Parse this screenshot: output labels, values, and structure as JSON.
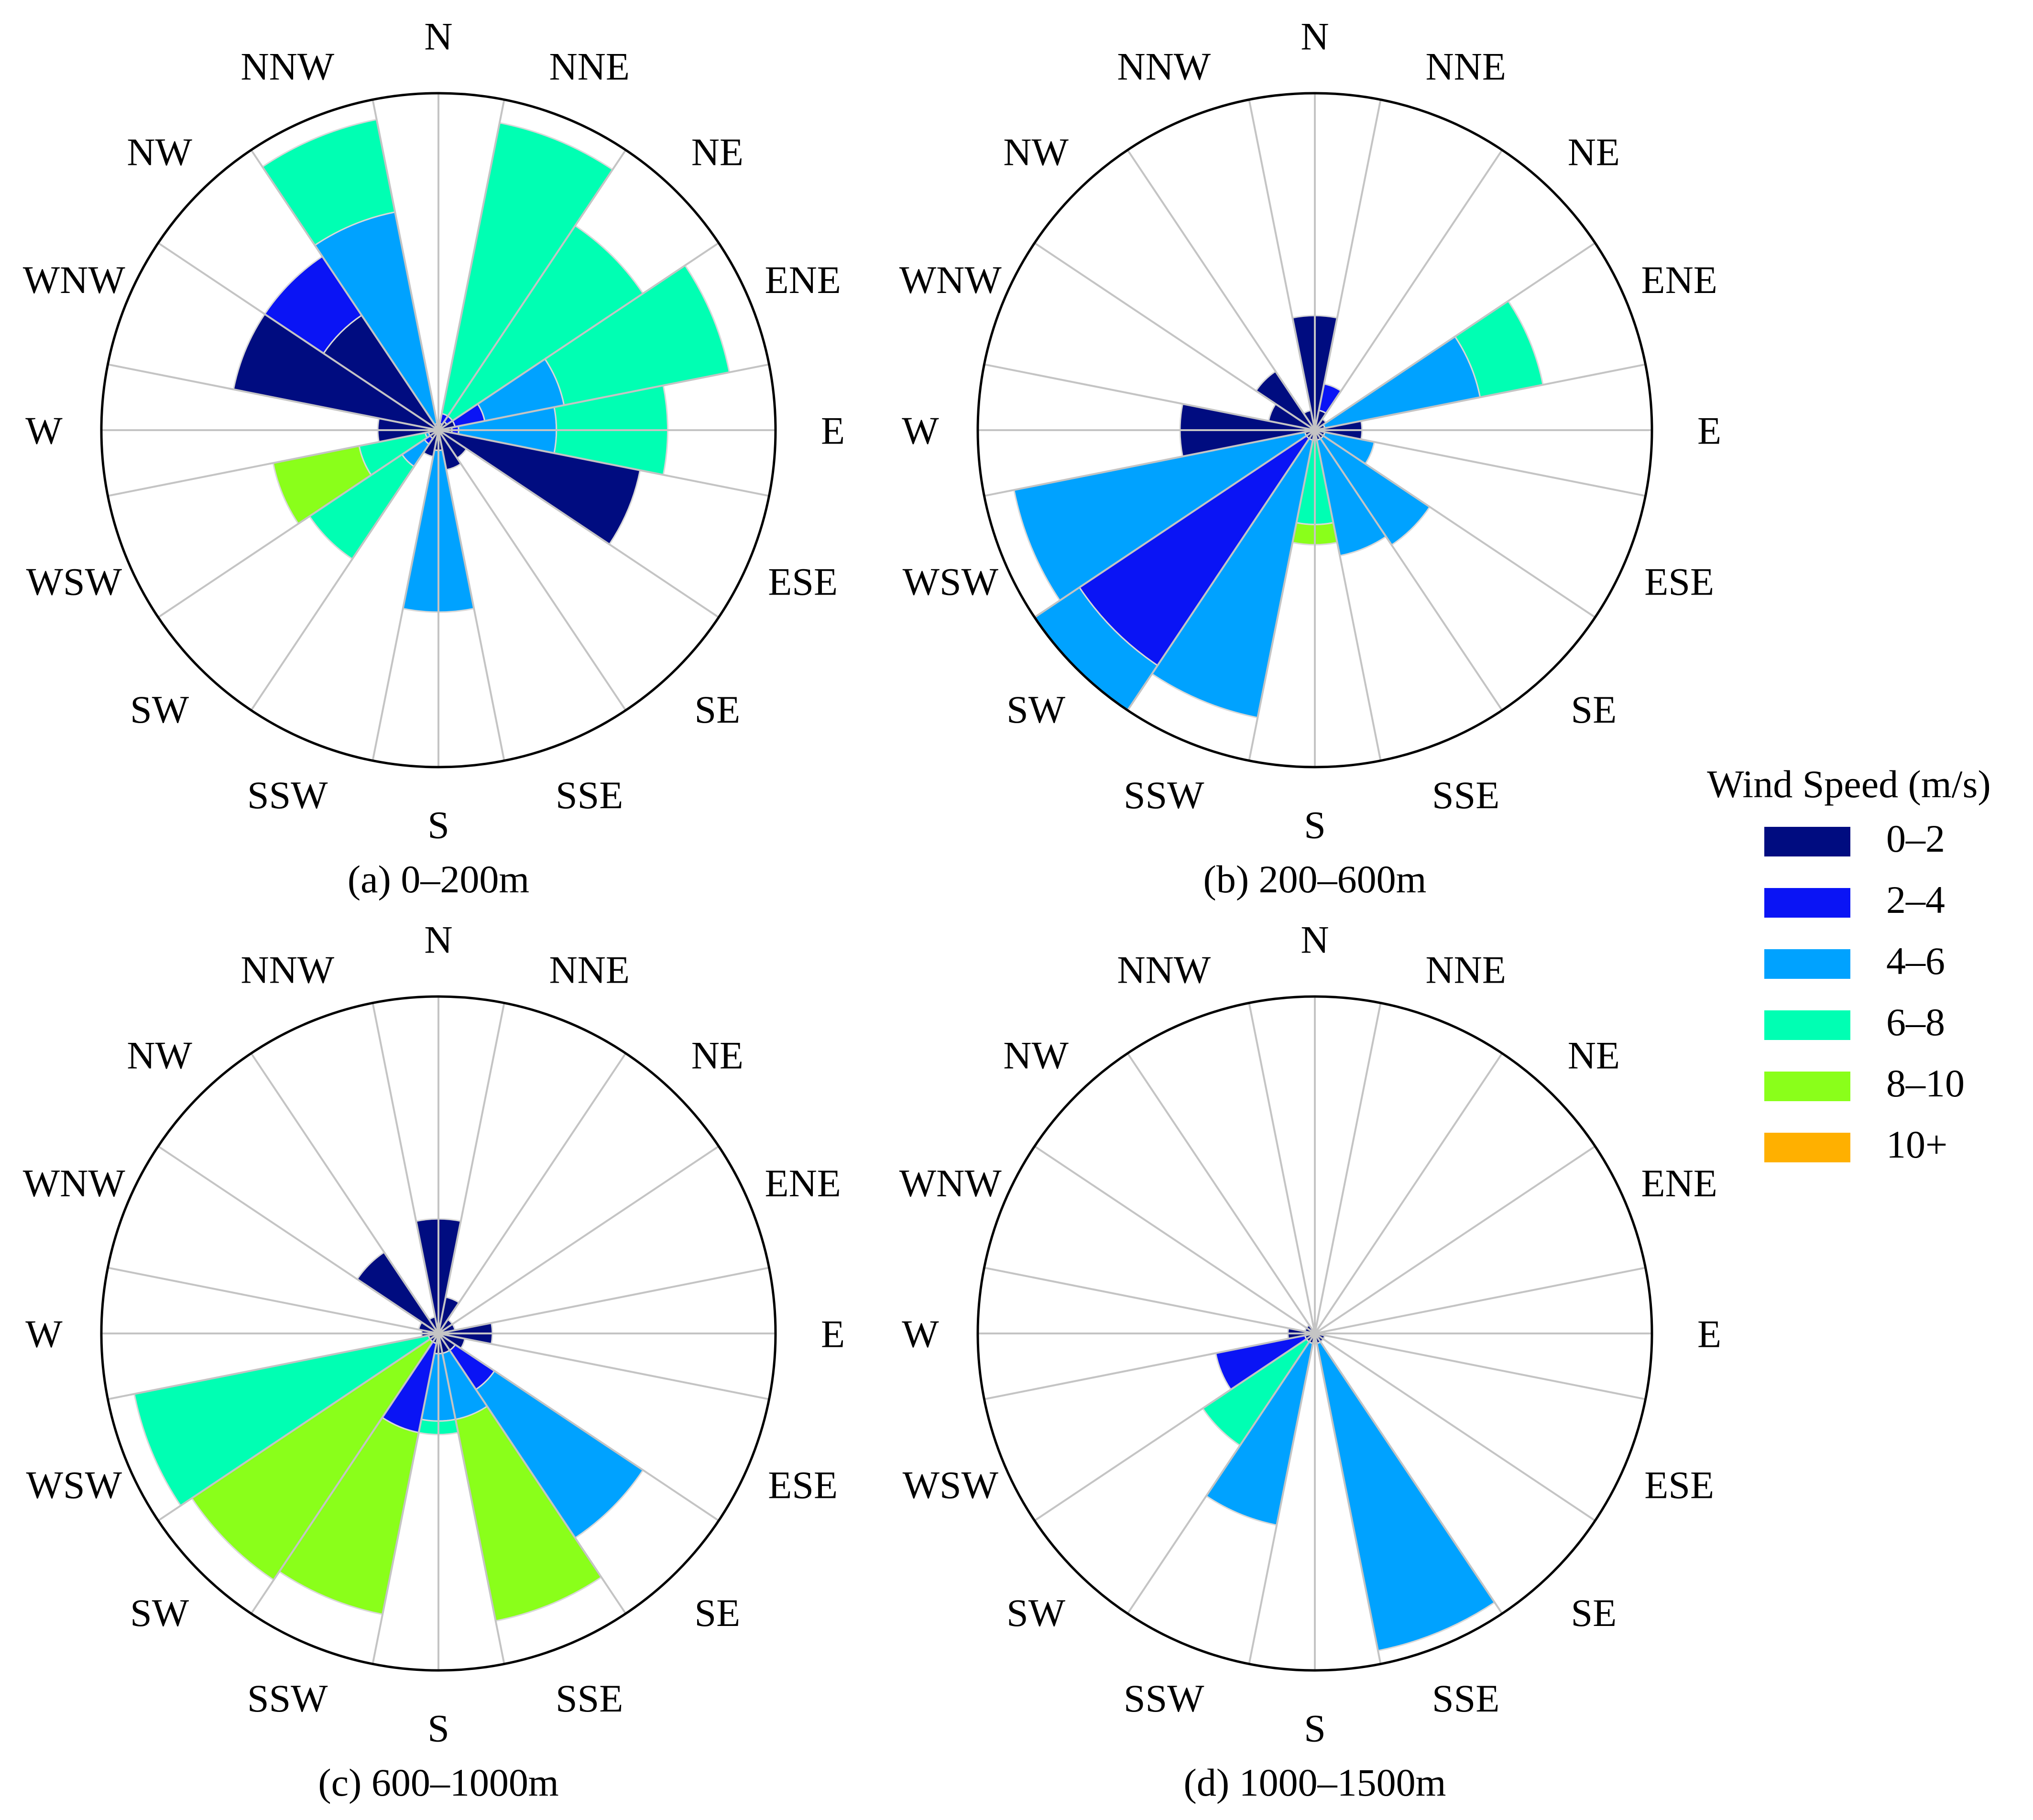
{
  "directions": [
    "N",
    "NNE",
    "NE",
    "ENE",
    "E",
    "ESE",
    "SE",
    "SSE",
    "S",
    "SSW",
    "SW",
    "WSW",
    "W",
    "WNW",
    "NW",
    "NNW"
  ],
  "bins": [
    "0–2",
    "2–4",
    "4–6",
    "6–8",
    "8–10",
    "10+"
  ],
  "colors": [
    "#000c80",
    "#0a14f5",
    "#00a2ff",
    "#00ffb3",
    "#8aff1a",
    "#ffb000"
  ],
  "legend": {
    "title": "Wind Speed (m/s)"
  },
  "chart_data": [
    {
      "type": "windrose",
      "title": "(a) 0–200m",
      "bins": [
        "0–2",
        "2–4",
        "4–6",
        "6–8",
        "8–10",
        "10+"
      ],
      "r_max": 10,
      "sectors": [
        {
          "dir": "N",
          "cumulative": [
            0.0,
            0.0,
            0.0,
            0.0,
            0.0,
            0.0
          ]
        },
        {
          "dir": "NNE",
          "cumulative": [
            0.2,
            0.5,
            0.5,
            9.3,
            9.3,
            9.3
          ]
        },
        {
          "dir": "NE",
          "cumulative": [
            0.3,
            0.5,
            0.5,
            7.3,
            7.3,
            7.3
          ]
        },
        {
          "dir": "ENE",
          "cumulative": [
            0.5,
            1.4,
            3.8,
            8.8,
            8.8,
            8.8
          ]
        },
        {
          "dir": "E",
          "cumulative": [
            0.4,
            0.6,
            3.5,
            6.8,
            6.8,
            6.8
          ]
        },
        {
          "dir": "ESE",
          "cumulative": [
            6.1,
            6.1,
            6.1,
            6.1,
            6.1,
            6.1
          ]
        },
        {
          "dir": "SE",
          "cumulative": [
            1.0,
            1.0,
            1.0,
            1.0,
            1.0,
            1.0
          ]
        },
        {
          "dir": "SSE",
          "cumulative": [
            1.2,
            1.2,
            1.2,
            1.2,
            1.2,
            1.2
          ]
        },
        {
          "dir": "S",
          "cumulative": [
            0.6,
            0.6,
            5.4,
            5.4,
            5.4,
            5.4
          ]
        },
        {
          "dir": "SSW",
          "cumulative": [
            0.8,
            0.8,
            0.8,
            0.8,
            0.8,
            0.8
          ]
        },
        {
          "dir": "SW",
          "cumulative": [
            0.3,
            0.5,
            1.3,
            4.6,
            4.6,
            4.6
          ]
        },
        {
          "dir": "WSW",
          "cumulative": [
            0.3,
            0.3,
            0.4,
            2.4,
            5.0,
            5.0
          ]
        },
        {
          "dir": "W",
          "cumulative": [
            1.8,
            1.8,
            1.8,
            1.8,
            1.8,
            1.8
          ]
        },
        {
          "dir": "WNW",
          "cumulative": [
            6.2,
            6.2,
            6.2,
            6.2,
            6.2,
            6.2
          ]
        },
        {
          "dir": "NW",
          "cumulative": [
            4.1,
            6.2,
            6.2,
            6.2,
            6.2,
            6.2
          ]
        },
        {
          "dir": "NNW",
          "cumulative": [
            0.1,
            0.2,
            6.6,
            9.4,
            9.4,
            9.4
          ]
        }
      ]
    },
    {
      "type": "windrose",
      "title": "(b) 200–600m",
      "bins": [
        "0–2",
        "2–4",
        "4–6",
        "6–8",
        "8–10",
        "10+"
      ],
      "r_max": 10,
      "sectors": [
        {
          "dir": "N",
          "cumulative": [
            3.4,
            3.4,
            3.4,
            3.4,
            3.4,
            3.4
          ]
        },
        {
          "dir": "NNE",
          "cumulative": [
            0.6,
            1.4,
            1.4,
            1.4,
            1.4,
            1.4
          ]
        },
        {
          "dir": "NE",
          "cumulative": [
            0.4,
            0.4,
            0.4,
            0.4,
            0.4,
            0.4
          ]
        },
        {
          "dir": "ENE",
          "cumulative": [
            0.3,
            0.3,
            5.0,
            6.9,
            6.9,
            6.9
          ]
        },
        {
          "dir": "E",
          "cumulative": [
            1.4,
            1.4,
            1.4,
            1.4,
            1.4,
            1.4
          ]
        },
        {
          "dir": "ESE",
          "cumulative": [
            0.3,
            0.3,
            1.8,
            1.8,
            1.8,
            1.8
          ]
        },
        {
          "dir": "SE",
          "cumulative": [
            0.3,
            0.3,
            4.1,
            4.1,
            4.1,
            4.1
          ]
        },
        {
          "dir": "SSE",
          "cumulative": [
            0.3,
            0.3,
            3.8,
            3.8,
            3.8,
            3.8
          ]
        },
        {
          "dir": "S",
          "cumulative": [
            0.3,
            0.3,
            0.3,
            2.8,
            3.4,
            3.4
          ]
        },
        {
          "dir": "SSW",
          "cumulative": [
            0.3,
            0.3,
            8.7,
            8.7,
            8.7,
            8.7
          ]
        },
        {
          "dir": "SW",
          "cumulative": [
            0.3,
            8.4,
            10.0,
            10.0,
            10.0,
            10.0
          ]
        },
        {
          "dir": "WSW",
          "cumulative": [
            0.3,
            0.3,
            9.1,
            9.1,
            9.1,
            9.1
          ]
        },
        {
          "dir": "W",
          "cumulative": [
            4.0,
            4.0,
            4.0,
            4.0,
            4.0,
            4.0
          ]
        },
        {
          "dir": "WNW",
          "cumulative": [
            1.4,
            1.4,
            1.4,
            1.4,
            1.4,
            1.4
          ]
        },
        {
          "dir": "NW",
          "cumulative": [
            2.1,
            2.1,
            2.1,
            2.1,
            2.1,
            2.1
          ]
        },
        {
          "dir": "NNW",
          "cumulative": [
            0.6,
            0.6,
            0.6,
            0.6,
            0.6,
            0.6
          ]
        }
      ]
    },
    {
      "type": "windrose",
      "title": "(c) 600–1000m",
      "bins": [
        "0–2",
        "2–4",
        "4–6",
        "6–8",
        "8–10",
        "10+"
      ],
      "r_max": 10,
      "sectors": [
        {
          "dir": "N",
          "cumulative": [
            3.4,
            3.4,
            3.4,
            3.4,
            3.4,
            3.4
          ]
        },
        {
          "dir": "NNE",
          "cumulative": [
            1.1,
            1.1,
            1.1,
            1.1,
            1.1,
            1.1
          ]
        },
        {
          "dir": "NE",
          "cumulative": [
            0.5,
            0.5,
            0.5,
            0.5,
            0.5,
            0.5
          ]
        },
        {
          "dir": "ENE",
          "cumulative": [
            0.5,
            0.5,
            0.5,
            0.5,
            0.5,
            0.5
          ]
        },
        {
          "dir": "E",
          "cumulative": [
            1.6,
            1.6,
            1.6,
            1.6,
            1.6,
            1.6
          ]
        },
        {
          "dir": "ESE",
          "cumulative": [
            0.8,
            0.8,
            0.8,
            0.8,
            0.8,
            0.8
          ]
        },
        {
          "dir": "SE",
          "cumulative": [
            0.6,
            2.0,
            7.3,
            7.3,
            7.3,
            7.3
          ]
        },
        {
          "dir": "SSE",
          "cumulative": [
            0.6,
            0.6,
            2.6,
            2.6,
            8.7,
            8.7
          ]
        },
        {
          "dir": "S",
          "cumulative": [
            0.6,
            0.6,
            2.6,
            3.0,
            3.0,
            3.0
          ]
        },
        {
          "dir": "SSW",
          "cumulative": [
            0.3,
            3.0,
            3.0,
            3.0,
            8.5,
            8.5
          ]
        },
        {
          "dir": "SW",
          "cumulative": [
            0.3,
            0.3,
            0.3,
            0.3,
            8.8,
            8.8
          ]
        },
        {
          "dir": "WSW",
          "cumulative": [
            0.3,
            0.3,
            0.3,
            9.2,
            9.2,
            9.2
          ]
        },
        {
          "dir": "W",
          "cumulative": [
            0.5,
            0.5,
            0.5,
            0.5,
            0.5,
            0.5
          ]
        },
        {
          "dir": "WNW",
          "cumulative": [
            0.6,
            0.6,
            0.6,
            0.6,
            0.6,
            0.6
          ]
        },
        {
          "dir": "NW",
          "cumulative": [
            2.9,
            2.9,
            2.9,
            2.9,
            2.9,
            2.9
          ]
        },
        {
          "dir": "NNW",
          "cumulative": [
            0.5,
            0.5,
            0.5,
            0.5,
            0.5,
            0.5
          ]
        }
      ]
    },
    {
      "type": "windrose",
      "title": "(d) 1000–1500m",
      "bins": [
        "0–2",
        "2–4",
        "4–6",
        "6–8",
        "8–10",
        "10+"
      ],
      "r_max": 10,
      "sectors": [
        {
          "dir": "N",
          "cumulative": [
            0.0,
            0.0,
            0.0,
            0.0,
            0.0,
            0.0
          ]
        },
        {
          "dir": "NNE",
          "cumulative": [
            0.0,
            0.0,
            0.0,
            0.0,
            0.0,
            0.0
          ]
        },
        {
          "dir": "NE",
          "cumulative": [
            0.0,
            0.0,
            0.0,
            0.0,
            0.0,
            0.0
          ]
        },
        {
          "dir": "ENE",
          "cumulative": [
            0.0,
            0.0,
            0.0,
            0.0,
            0.0,
            0.0
          ]
        },
        {
          "dir": "E",
          "cumulative": [
            0.0,
            0.0,
            0.0,
            0.0,
            0.0,
            0.0
          ]
        },
        {
          "dir": "ESE",
          "cumulative": [
            0.3,
            0.3,
            0.3,
            0.3,
            0.3,
            0.3
          ]
        },
        {
          "dir": "SE",
          "cumulative": [
            0.3,
            0.3,
            0.3,
            0.3,
            0.3,
            0.3
          ]
        },
        {
          "dir": "SSE",
          "cumulative": [
            0.3,
            0.3,
            9.6,
            9.6,
            9.6,
            9.6
          ]
        },
        {
          "dir": "S",
          "cumulative": [
            0.3,
            0.3,
            0.3,
            0.3,
            0.3,
            0.3
          ]
        },
        {
          "dir": "SSW",
          "cumulative": [
            0.3,
            0.3,
            5.8,
            5.8,
            5.8,
            5.8
          ]
        },
        {
          "dir": "SW",
          "cumulative": [
            0.3,
            0.3,
            0.3,
            4.0,
            4.0,
            4.0
          ]
        },
        {
          "dir": "WSW",
          "cumulative": [
            0.3,
            3.0,
            3.0,
            3.0,
            3.0,
            3.0
          ]
        },
        {
          "dir": "W",
          "cumulative": [
            0.8,
            0.8,
            0.8,
            0.8,
            0.8,
            0.8
          ]
        },
        {
          "dir": "WNW",
          "cumulative": [
            0.3,
            0.3,
            0.3,
            0.3,
            0.3,
            0.3
          ]
        },
        {
          "dir": "NW",
          "cumulative": [
            0.3,
            0.3,
            0.3,
            0.3,
            0.3,
            0.3
          ]
        },
        {
          "dir": "NNW",
          "cumulative": [
            0.0,
            0.0,
            0.0,
            0.0,
            0.0,
            0.0
          ]
        }
      ]
    }
  ]
}
